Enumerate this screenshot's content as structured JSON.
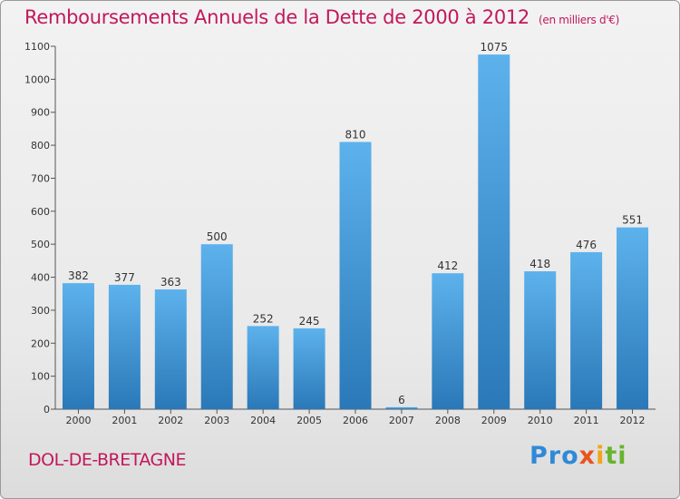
{
  "title": "Remboursements Annuels de la Dette de 2000 à 2012",
  "unit": "(en milliers d'€)",
  "town": "DOL-DE-BRETAGNE",
  "logo": [
    "Pro",
    "x",
    "i",
    "ti"
  ],
  "colors": {
    "accent": "#c2185b",
    "bar_top": "#5db2ec",
    "bar_bottom": "#2a78b8"
  },
  "chart_data": {
    "type": "bar",
    "categories": [
      "2000",
      "2001",
      "2002",
      "2003",
      "2004",
      "2005",
      "2006",
      "2007",
      "2008",
      "2009",
      "2010",
      "2011",
      "2012"
    ],
    "values": [
      382,
      377,
      363,
      500,
      252,
      245,
      810,
      6,
      412,
      1075,
      418,
      476,
      551
    ],
    "ylim": [
      0,
      1100
    ],
    "yticks": [
      0,
      100,
      200,
      300,
      400,
      500,
      600,
      700,
      800,
      900,
      1000,
      1100
    ],
    "grid": false,
    "legend": "none"
  }
}
